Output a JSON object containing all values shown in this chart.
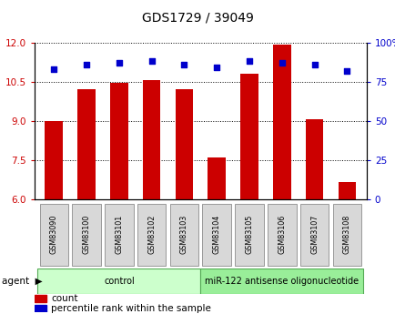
{
  "title": "GDS1729 / 39049",
  "samples": [
    "GSM83090",
    "GSM83100",
    "GSM83101",
    "GSM83102",
    "GSM83103",
    "GSM83104",
    "GSM83105",
    "GSM83106",
    "GSM83107",
    "GSM83108"
  ],
  "bar_values": [
    9.0,
    10.2,
    10.45,
    10.55,
    10.2,
    7.6,
    10.8,
    11.9,
    9.05,
    6.65
  ],
  "scatter_values": [
    83,
    86,
    87,
    88,
    86,
    84,
    88,
    87,
    86,
    82
  ],
  "bar_color": "#cc0000",
  "scatter_color": "#0000cc",
  "ylim_left": [
    6,
    12
  ],
  "ylim_right": [
    0,
    100
  ],
  "yticks_left": [
    6,
    7.5,
    9,
    10.5,
    12
  ],
  "yticks_right": [
    0,
    25,
    50,
    75,
    100
  ],
  "ytick_labels_right": [
    "0",
    "25",
    "50",
    "75",
    "100%"
  ],
  "groups": [
    {
      "label": "control",
      "start": 0,
      "end": 5,
      "color": "#ccffcc"
    },
    {
      "label": "miR-122 antisense oligonucleotide",
      "start": 5,
      "end": 10,
      "color": "#99ee99"
    }
  ],
  "legend_bar_label": "count",
  "legend_scatter_label": "percentile rank within the sample",
  "bar_bottom": 6,
  "background_color": "#ffffff"
}
